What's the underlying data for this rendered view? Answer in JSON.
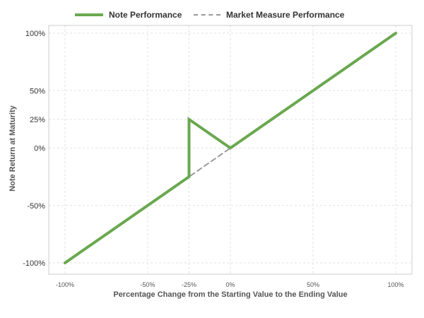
{
  "chart_data": {
    "type": "line",
    "title": "",
    "xlabel": "Percentage Change from the Starting Value to the Ending Value",
    "ylabel": "Note Return at Maturity",
    "xlim": [
      -100,
      100
    ],
    "ylim": [
      -100,
      100
    ],
    "x_ticks": [
      -100,
      -50,
      -25,
      0,
      50,
      100
    ],
    "x_tick_labels": [
      "-100%",
      "-50%",
      "-25%",
      "0%",
      "50%",
      "100%"
    ],
    "y_ticks": [
      -100,
      -50,
      0,
      25,
      50,
      100
    ],
    "y_tick_labels": [
      "-100%",
      "-50%",
      "0%",
      "25%",
      "50%",
      "100%"
    ],
    "grid": true,
    "legend": "top",
    "series": [
      {
        "name": "Note Performance",
        "style": "solid",
        "color": "#6aa84f",
        "points": [
          [
            -100,
            -100
          ],
          [
            -25,
            -25
          ],
          [
            -25,
            25
          ],
          [
            0,
            0
          ],
          [
            100,
            100
          ]
        ]
      },
      {
        "name": "Market Measure Performance",
        "style": "dashed",
        "color": "#999999",
        "points": [
          [
            -100,
            -100
          ],
          [
            100,
            100
          ]
        ]
      }
    ]
  }
}
